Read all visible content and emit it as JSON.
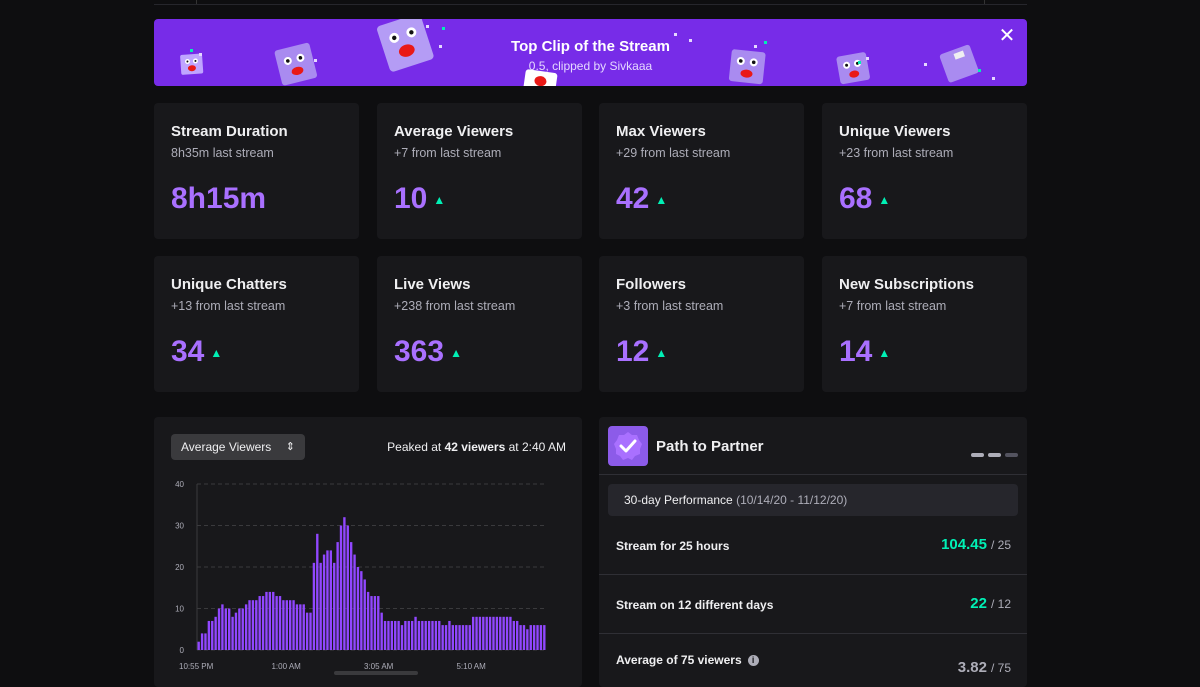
{
  "banner": {
    "title": "Top Clip of the Stream",
    "subtitle": "0.5, clipped by Sivkaaa",
    "close_glyph": "✕",
    "accent": "#772ce8"
  },
  "stats": [
    {
      "label": "Stream Duration",
      "delta": "8h35m last stream",
      "value": "8h15m",
      "trend": ""
    },
    {
      "label": "Average Viewers",
      "delta": "+7 from last stream",
      "value": "10",
      "trend": "up"
    },
    {
      "label": "Max Viewers",
      "delta": "+29 from last stream",
      "value": "42",
      "trend": "up"
    },
    {
      "label": "Unique Viewers",
      "delta": "+23 from last stream",
      "value": "68",
      "trend": "up"
    },
    {
      "label": "Unique Chatters",
      "delta": "+13 from last stream",
      "value": "34",
      "trend": "up"
    },
    {
      "label": "Live Views",
      "delta": "+238 from last stream",
      "value": "363",
      "trend": "up"
    },
    {
      "label": "Followers",
      "delta": "+3 from last stream",
      "value": "12",
      "trend": "up"
    },
    {
      "label": "New Subscriptions",
      "delta": "+7 from last stream",
      "value": "14",
      "trend": "up"
    }
  ],
  "chart_panel": {
    "metric_selected": "Average Viewers",
    "peak_prefix": "Peaked at",
    "peak_value": "42 viewers",
    "peak_suffix": "at 2:40 AM"
  },
  "chart_data": {
    "type": "bar",
    "xlabel": "",
    "ylabel": "",
    "ylim": [
      0,
      40
    ],
    "yticks": [
      0,
      10,
      20,
      30,
      40
    ],
    "xtick_labels": [
      "10:55 PM",
      "1:00 AM",
      "3:05 AM",
      "5:10 AM"
    ],
    "grid": true,
    "color": "#9147ff",
    "values": [
      2,
      4,
      4,
      7,
      7,
      8,
      10,
      11,
      10,
      10,
      8,
      9,
      10,
      10,
      11,
      12,
      12,
      12,
      13,
      13,
      14,
      14,
      14,
      13,
      13,
      12,
      12,
      12,
      12,
      11,
      11,
      11,
      9,
      9,
      21,
      28,
      21,
      23,
      24,
      24,
      21,
      26,
      30,
      32,
      30,
      26,
      23,
      20,
      19,
      17,
      14,
      13,
      13,
      13,
      9,
      7,
      7,
      7,
      7,
      7,
      6,
      7,
      7,
      7,
      8,
      7,
      7,
      7,
      7,
      7,
      7,
      7,
      6,
      6,
      7,
      6,
      6,
      6,
      6,
      6,
      6,
      8,
      8,
      8,
      8,
      8,
      8,
      8,
      8,
      8,
      8,
      8,
      8,
      7,
      7,
      6,
      6,
      5,
      6,
      6,
      6,
      6,
      6
    ],
    "bar_color": "#9147ff"
  },
  "partner": {
    "title": "Path to Partner",
    "icon": "check-badge-icon",
    "perf_label": "30-day Performance",
    "perf_dates": "(10/14/20 - 11/12/20)",
    "requirements": [
      {
        "label": "Stream for 25 hours",
        "current": "104.45",
        "target": "/ 25",
        "met": true
      },
      {
        "label": "Stream on 12 different days",
        "current": "22",
        "target": "/ 12",
        "met": true
      },
      {
        "label": "Average of 75 viewers",
        "current": "3.82",
        "target": "/ 75",
        "met": false
      }
    ]
  }
}
